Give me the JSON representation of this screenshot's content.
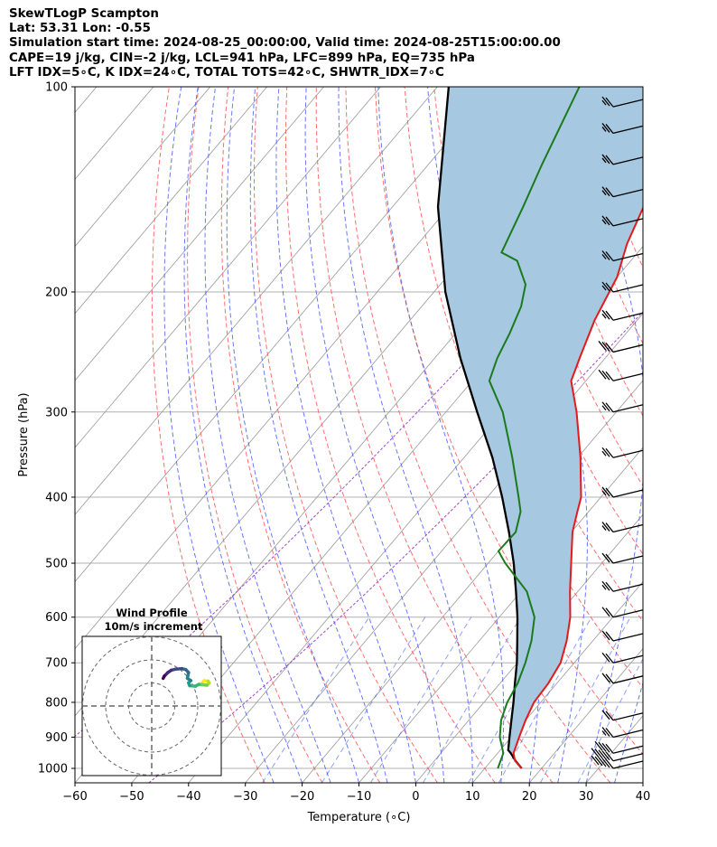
{
  "header": {
    "line1": "SkewTLogP Scampton",
    "line2": "Lat: 53.31   Lon: -0.55",
    "line3": "Simulation start time: 2024-08-25_00:00:00, Valid time: 2024-08-25T15:00:00.00",
    "line4": "CAPE=19 j/kg, CIN=-2 j/kg, LCL=941 hPa, LFC=899 hPa, EQ=735 hPa",
    "line5": "LFT IDX=5∘C, K IDX=24∘C, TOTAL TOTS=42∘C, SHWTR_IDX=7∘C"
  },
  "chart_data": {
    "type": "skewt",
    "xlabel": "Temperature (∘C)",
    "ylabel": "Pressure (hPa)",
    "xlim": [
      -60,
      40
    ],
    "ylim": [
      1050,
      100
    ],
    "x_ticks": [
      -60,
      -50,
      -40,
      -30,
      -20,
      -10,
      0,
      10,
      20,
      30,
      40
    ],
    "y_ticks": [
      100,
      200,
      300,
      400,
      500,
      600,
      700,
      800,
      900,
      1000
    ],
    "y_scale": "log",
    "grid": true,
    "colors": {
      "temperature": "#e41a1c",
      "dewpoint": "#1b7a1b",
      "parcel": "#000000",
      "cape_fill": "#a6c8e0",
      "dry_adiabat": "#ff5555",
      "moist_adiabat": "#4455ff",
      "mixing_ratio": "#3355ee",
      "isotherm": "#999999",
      "special_adiabat": "#9933cc"
    },
    "temperature": [
      {
        "p": 1000,
        "t": 16.5
      },
      {
        "p": 975,
        "t": 14.2
      },
      {
        "p": 950,
        "t": 12.8
      },
      {
        "p": 900,
        "t": 11.4
      },
      {
        "p": 850,
        "t": 10.0
      },
      {
        "p": 800,
        "t": 8.8
      },
      {
        "p": 750,
        "t": 8.5
      },
      {
        "p": 700,
        "t": 7.6
      },
      {
        "p": 650,
        "t": 5.4
      },
      {
        "p": 600,
        "t": 2.5
      },
      {
        "p": 550,
        "t": -1.4
      },
      {
        "p": 500,
        "t": -5.4
      },
      {
        "p": 450,
        "t": -9.8
      },
      {
        "p": 420,
        "t": -12.0
      },
      {
        "p": 400,
        "t": -13.5
      },
      {
        "p": 350,
        "t": -19.5
      },
      {
        "p": 300,
        "t": -27.0
      },
      {
        "p": 270,
        "t": -32.6
      },
      {
        "p": 250,
        "t": -34.5
      },
      {
        "p": 220,
        "t": -37.5
      },
      {
        "p": 190,
        "t": -40.0
      },
      {
        "p": 170,
        "t": -43.2
      },
      {
        "p": 150,
        "t": -45.8
      },
      {
        "p": 130,
        "t": -48.5
      },
      {
        "p": 115,
        "t": -49.2
      },
      {
        "p": 100,
        "t": -53.0
      }
    ],
    "dewpoint": [
      {
        "p": 1000,
        "t": 12.3
      },
      {
        "p": 950,
        "t": 11.0
      },
      {
        "p": 900,
        "t": 8.0
      },
      {
        "p": 850,
        "t": 5.7
      },
      {
        "p": 800,
        "t": 4.1
      },
      {
        "p": 750,
        "t": 3.1
      },
      {
        "p": 700,
        "t": 1.4
      },
      {
        "p": 650,
        "t": -0.8
      },
      {
        "p": 600,
        "t": -3.8
      },
      {
        "p": 550,
        "t": -9.0
      },
      {
        "p": 500,
        "t": -17.0
      },
      {
        "p": 480,
        "t": -20.0
      },
      {
        "p": 450,
        "t": -19.8
      },
      {
        "p": 420,
        "t": -22.0
      },
      {
        "p": 400,
        "t": -24.5
      },
      {
        "p": 350,
        "t": -31.5
      },
      {
        "p": 300,
        "t": -40.0
      },
      {
        "p": 270,
        "t": -47.0
      },
      {
        "p": 250,
        "t": -49.0
      },
      {
        "p": 230,
        "t": -50.5
      },
      {
        "p": 210,
        "t": -52.5
      },
      {
        "p": 195,
        "t": -55.0
      },
      {
        "p": 180,
        "t": -60.0
      },
      {
        "p": 175,
        "t": -64.0
      },
      {
        "p": 150,
        "t": -67.0
      },
      {
        "p": 130,
        "t": -70.0
      },
      {
        "p": 100,
        "t": -75.0
      }
    ],
    "parcel": [
      {
        "p": 1000,
        "t": 16.5
      },
      {
        "p": 975,
        "t": 14.3
      },
      {
        "p": 950,
        "t": 12.3
      },
      {
        "p": 940,
        "t": 11.4
      },
      {
        "p": 900,
        "t": 9.7
      },
      {
        "p": 850,
        "t": 7.5
      },
      {
        "p": 800,
        "t": 5.2
      },
      {
        "p": 750,
        "t": 2.6
      },
      {
        "p": 700,
        "t": -0.1
      },
      {
        "p": 650,
        "t": -3.3
      },
      {
        "p": 600,
        "t": -6.8
      },
      {
        "p": 550,
        "t": -10.9
      },
      {
        "p": 500,
        "t": -15.5
      },
      {
        "p": 450,
        "t": -21.0
      },
      {
        "p": 400,
        "t": -27.4
      },
      {
        "p": 350,
        "t": -35.0
      },
      {
        "p": 300,
        "t": -44.5
      },
      {
        "p": 250,
        "t": -55.5
      },
      {
        "p": 200,
        "t": -68.0
      },
      {
        "p": 150,
        "t": -82.0
      },
      {
        "p": 100,
        "t": -98.0
      }
    ],
    "wind_barbs": [
      {
        "p": 1000,
        "kts": 50
      },
      {
        "p": 975,
        "kts": 50
      },
      {
        "p": 950,
        "kts": 40
      },
      {
        "p": 900,
        "kts": 25
      },
      {
        "p": 850,
        "kts": 20
      },
      {
        "p": 750,
        "kts": 20
      },
      {
        "p": 700,
        "kts": 20
      },
      {
        "p": 650,
        "kts": 20
      },
      {
        "p": 600,
        "kts": 20
      },
      {
        "p": 550,
        "kts": 25
      },
      {
        "p": 500,
        "kts": 20
      },
      {
        "p": 450,
        "kts": 25
      },
      {
        "p": 400,
        "kts": 25
      },
      {
        "p": 350,
        "kts": 25
      },
      {
        "p": 300,
        "kts": 25
      },
      {
        "p": 270,
        "kts": 30
      },
      {
        "p": 245,
        "kts": 30
      },
      {
        "p": 220,
        "kts": 25
      },
      {
        "p": 200,
        "kts": 25
      },
      {
        "p": 180,
        "kts": 25
      },
      {
        "p": 160,
        "kts": 25
      },
      {
        "p": 145,
        "kts": 25
      },
      {
        "p": 130,
        "kts": 25
      },
      {
        "p": 117,
        "kts": 25
      },
      {
        "p": 107,
        "kts": 25
      }
    ],
    "hodograph": {
      "title": "Wind Profile",
      "subtitle": "10m/s increment",
      "rings_ms": [
        10,
        20,
        30
      ],
      "trace_uv": [
        [
          21.5,
          9.5
        ],
        [
          22.8,
          11.0
        ],
        [
          24.5,
          10.8
        ],
        [
          25.0,
          10.0
        ],
        [
          24.0,
          9.0
        ],
        [
          22.0,
          9.2
        ],
        [
          20.5,
          9.4
        ],
        [
          19.0,
          8.6
        ],
        [
          16.5,
          8.8
        ],
        [
          16.0,
          10.0
        ],
        [
          17.0,
          11.0
        ],
        [
          15.5,
          12.0
        ],
        [
          16.0,
          14.5
        ],
        [
          14.8,
          15.8
        ],
        [
          13.0,
          16.2
        ],
        [
          10.5,
          16.0
        ],
        [
          8.5,
          15.5
        ],
        [
          7.0,
          14.5
        ],
        [
          5.5,
          13.0
        ],
        [
          5.0,
          12.0
        ]
      ]
    }
  }
}
